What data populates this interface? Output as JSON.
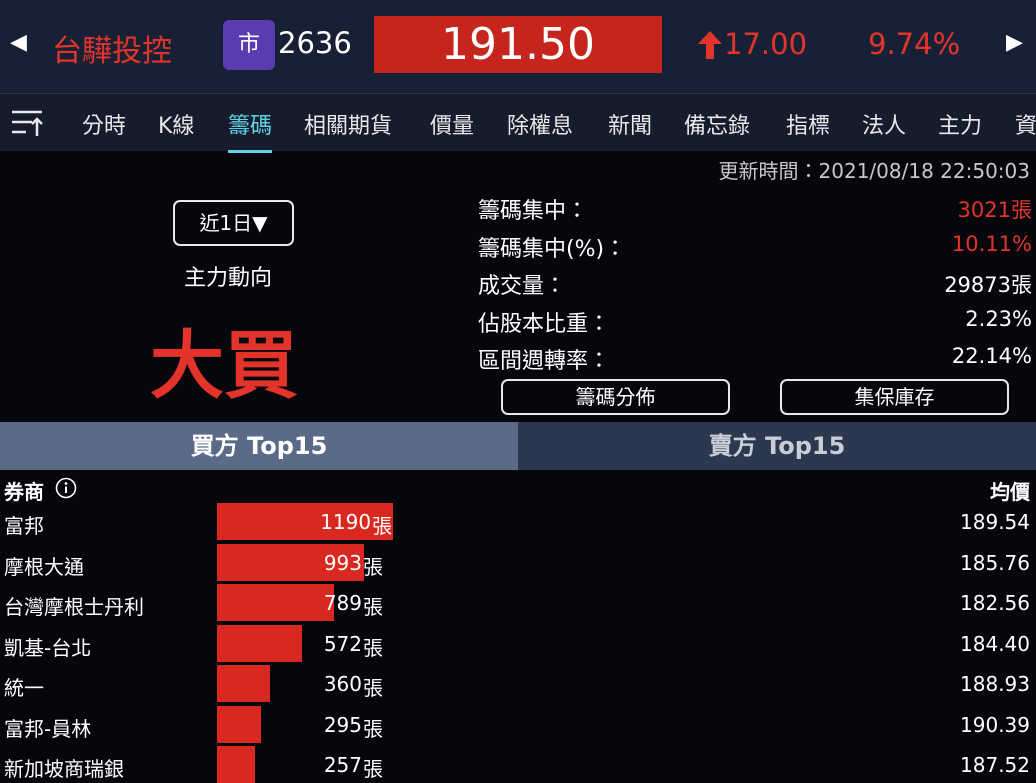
{
  "header": {
    "name": "台驊投控",
    "market_badge": "市",
    "code": "2636",
    "price": "191.50",
    "change": "17.00",
    "change_pct": "9.74%"
  },
  "tabs": [
    "分時",
    "K線",
    "籌碼",
    "相關期貨",
    "價量",
    "除權息",
    "新聞",
    "備忘錄",
    "指標",
    "法人",
    "主力",
    "資"
  ],
  "update_time": "更新時間：2021/08/18 22:50:03",
  "period_button": "近1日▼",
  "trend_label": "主力動向",
  "trend": "大買",
  "stats": [
    {
      "label": "籌碼集中：",
      "value": "3021張"
    },
    {
      "label": "籌碼集中(%)：",
      "value": "10.11%"
    },
    {
      "label": "成交量：",
      "value": "29873張"
    },
    {
      "label": "佔股本比重：",
      "value": "2.23%"
    },
    {
      "label": "區間週轉率：",
      "value": "22.14%"
    }
  ],
  "buttons": [
    "籌碼分佈",
    "集保庫存"
  ],
  "side_tabs": [
    "買方 Top15",
    "賣方 Top15"
  ],
  "table": {
    "headers": [
      "券商",
      "均價"
    ],
    "unit": "張",
    "rows": [
      {
        "broker": "富邦",
        "volume": 1190,
        "avg_price": "189.54"
      },
      {
        "broker": "摩根大通",
        "volume": 993,
        "avg_price": "185.76"
      },
      {
        "broker": "台灣摩根士丹利",
        "volume": 789,
        "avg_price": "182.56"
      },
      {
        "broker": "凱基-台北",
        "volume": 572,
        "avg_price": "184.40"
      },
      {
        "broker": "統一",
        "volume": 360,
        "avg_price": "188.93"
      },
      {
        "broker": "富邦-員林",
        "volume": 295,
        "avg_price": "190.39"
      },
      {
        "broker": "新加坡商瑞銀",
        "volume": 257,
        "avg_price": "187.52"
      }
    ]
  }
}
